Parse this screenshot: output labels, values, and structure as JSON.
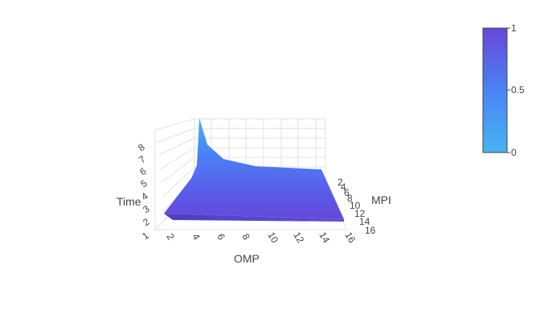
{
  "chart_data": {
    "type": "surface",
    "colorscale": [
      "#47b4f2",
      "#4a83f4",
      "#5a5bea",
      "#6747d8"
    ],
    "colorbar": {
      "ticks": [
        "0",
        "0.5",
        "1"
      ]
    },
    "x_axis": {
      "title": "OMP",
      "ticks": [
        "2",
        "4",
        "6",
        "8",
        "10",
        "12",
        "14",
        "16"
      ]
    },
    "y_axis": {
      "title": "MPI",
      "ticks": [
        "2",
        "4",
        "6",
        "8",
        "10",
        "12",
        "14",
        "16"
      ]
    },
    "z_axis": {
      "title": "Time",
      "ticks": [
        "1",
        "2",
        "3",
        "4",
        "5",
        "6",
        "7",
        "8"
      ]
    },
    "surface": {
      "omp": [
        1,
        2,
        4,
        8,
        16
      ],
      "mpi": [
        1,
        2,
        4,
        8,
        16
      ],
      "time_along_omp_at_low_mpi": [
        8.0,
        4.5,
        3.3,
        2.9,
        2.6
      ],
      "time_at_high_mpi": [
        1.4,
        1.3,
        1.2,
        1.15,
        1.1
      ]
    }
  }
}
